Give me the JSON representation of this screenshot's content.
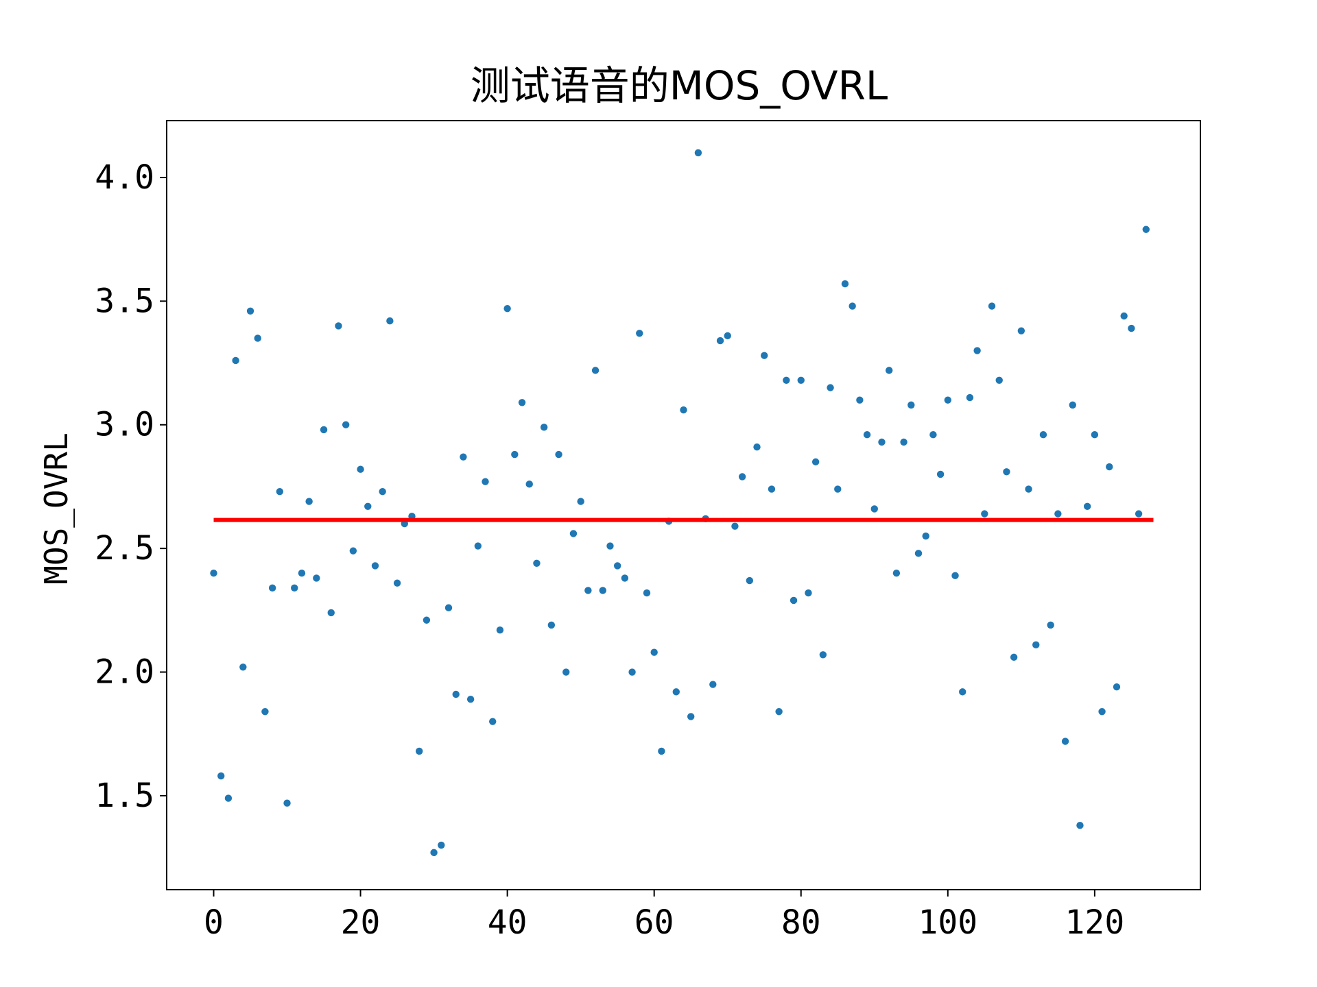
{
  "chart_data": {
    "type": "scatter",
    "title": "测试语音的MOS_OVRL",
    "xlabel": "",
    "ylabel": "MOS_OVRL",
    "xlim": [
      -6.4,
      134.4
    ],
    "ylim": [
      1.12,
      4.23
    ],
    "xticks": [
      "0",
      "20",
      "40",
      "60",
      "80",
      "100",
      "120"
    ],
    "xtick_values": [
      0,
      20,
      40,
      60,
      80,
      100,
      120
    ],
    "yticks": [
      "1.5",
      "2.0",
      "2.5",
      "3.0",
      "3.5",
      "4.0"
    ],
    "ytick_values": [
      1.5,
      2.0,
      2.5,
      3.0,
      3.5,
      4.0
    ],
    "grid": false,
    "colors": {
      "points": "#1f77b4",
      "mean_line": "#ff0000",
      "frame": "#000000"
    },
    "series": [
      {
        "type": "scatter",
        "x": [
          0,
          1,
          2,
          3,
          4,
          5,
          6,
          7,
          8,
          9,
          10,
          11,
          12,
          13,
          14,
          15,
          16,
          17,
          18,
          19,
          20,
          21,
          22,
          23,
          24,
          25,
          26,
          27,
          28,
          29,
          30,
          31,
          32,
          33,
          34,
          35,
          36,
          37,
          38,
          39,
          40,
          41,
          42,
          43,
          44,
          45,
          46,
          47,
          48,
          49,
          50,
          51,
          52,
          53,
          54,
          55,
          56,
          57,
          58,
          59,
          60,
          61,
          62,
          63,
          64,
          65,
          66,
          67,
          68,
          69,
          70,
          71,
          72,
          73,
          74,
          75,
          76,
          77,
          78,
          79,
          80,
          81,
          82,
          83,
          84,
          85,
          86,
          87,
          88,
          89,
          90,
          91,
          92,
          93,
          94,
          95,
          96,
          97,
          98,
          99,
          100,
          101,
          102,
          103,
          104,
          105,
          106,
          107,
          108,
          109,
          110,
          111,
          112,
          113,
          114,
          115,
          116,
          117,
          118,
          119,
          120,
          121,
          122,
          123,
          124,
          125,
          126,
          127
        ],
        "y": [
          2.4,
          1.58,
          1.49,
          3.26,
          2.02,
          3.46,
          3.35,
          1.84,
          2.34,
          2.73,
          1.47,
          2.34,
          2.4,
          2.69,
          2.38,
          2.98,
          2.24,
          3.4,
          3.0,
          2.49,
          2.82,
          2.67,
          2.43,
          2.73,
          3.42,
          2.36,
          2.6,
          2.63,
          1.68,
          2.21,
          1.27,
          1.3,
          2.26,
          1.91,
          2.87,
          1.89,
          2.51,
          2.77,
          1.8,
          2.17,
          3.47,
          2.88,
          3.09,
          2.76,
          2.44,
          2.99,
          2.19,
          2.88,
          2.0,
          2.56,
          2.69,
          2.33,
          3.22,
          2.33,
          2.51,
          2.43,
          2.38,
          2.0,
          3.37,
          2.32,
          2.08,
          1.68,
          2.61,
          1.92,
          3.06,
          1.82,
          4.1,
          2.62,
          1.95,
          3.34,
          3.36,
          2.59,
          2.79,
          2.37,
          2.91,
          3.28,
          2.74,
          1.84,
          3.18,
          2.29,
          3.18,
          2.32,
          2.85,
          2.07,
          3.15,
          2.74,
          3.57,
          3.48,
          3.1,
          2.96,
          2.66,
          2.93,
          3.22,
          2.4,
          2.93,
          3.08,
          2.48,
          2.55,
          2.96,
          2.8,
          3.1,
          2.39,
          1.92,
          3.11,
          3.3,
          2.64,
          3.48,
          3.18,
          2.81,
          2.06,
          3.38,
          2.74,
          2.11,
          2.96,
          2.19,
          2.64,
          1.72,
          3.08,
          1.38,
          2.67,
          2.96,
          1.84,
          2.83,
          1.94,
          3.44,
          3.39,
          2.64,
          3.79
        ]
      },
      {
        "type": "line",
        "x": [
          0,
          128
        ],
        "y": [
          2.615,
          2.615
        ]
      }
    ]
  }
}
